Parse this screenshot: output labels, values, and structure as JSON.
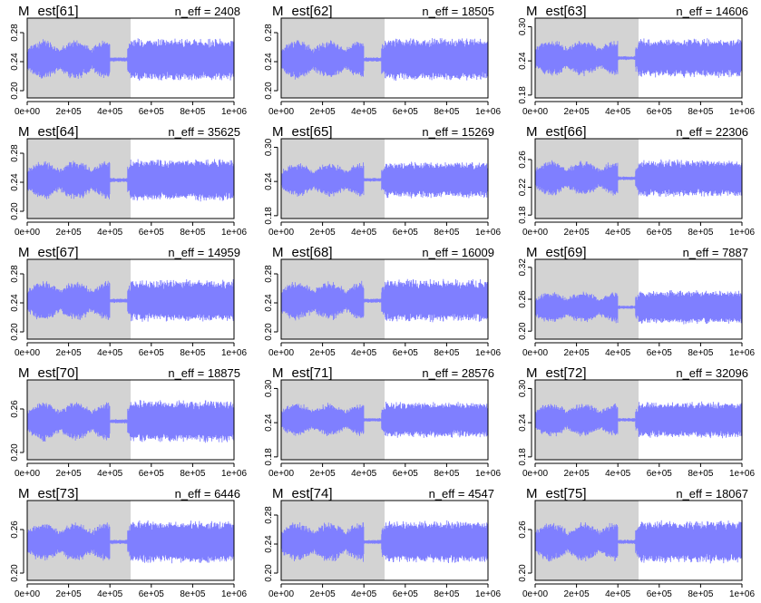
{
  "shade_color": "#d3d3d3",
  "trace_color": "#7f7fff",
  "chart_data": [
    {
      "type": "line",
      "title_param": "M_est[61]",
      "title_main": "M",
      "title_sub": "est[61]",
      "neff_label": "n_eff = 2408",
      "yticks": [
        "0.20",
        "0.24",
        "0.28"
      ],
      "ylim": [
        0.19,
        0.3
      ],
      "xticks": [
        "0e+00",
        "2e+05",
        "4e+05",
        "6e+05",
        "8e+05",
        "1e+06"
      ],
      "xlim": [
        0,
        1000000
      ],
      "warmup_end": 500000,
      "center": 0.243,
      "spread": 0.06
    },
    {
      "type": "line",
      "title_param": "M_est[62]",
      "title_main": "M",
      "title_sub": "est[62]",
      "neff_label": "n_eff = 18505",
      "yticks": [
        "0.20",
        "0.24",
        "0.28"
      ],
      "ylim": [
        0.19,
        0.3
      ],
      "xticks": [
        "0e+00",
        "2e+05",
        "4e+05",
        "6e+05",
        "8e+05",
        "1e+06"
      ],
      "xlim": [
        0,
        1000000
      ],
      "warmup_end": 500000,
      "center": 0.243,
      "spread": 0.06
    },
    {
      "type": "line",
      "title_param": "M_est[63]",
      "title_main": "M",
      "title_sub": "est[63]",
      "neff_label": "n_eff = 14606",
      "yticks": [
        "0.18",
        "0.24",
        "0.30"
      ],
      "ylim": [
        0.175,
        0.315
      ],
      "xticks": [
        "0e+00",
        "2e+05",
        "4e+05",
        "6e+05",
        "8e+05",
        "1e+06"
      ],
      "xlim": [
        0,
        1000000
      ],
      "warmup_end": 500000,
      "center": 0.245,
      "spread": 0.07
    },
    {
      "type": "line",
      "title_param": "M_est[64]",
      "title_main": "M",
      "title_sub": "est[64]",
      "neff_label": "n_eff = 35625",
      "yticks": [
        "0.20",
        "0.24",
        "0.28"
      ],
      "ylim": [
        0.19,
        0.3
      ],
      "xticks": [
        "0e+00",
        "2e+05",
        "4e+05",
        "6e+05",
        "8e+05",
        "1e+06"
      ],
      "xlim": [
        0,
        1000000
      ],
      "warmup_end": 500000,
      "center": 0.243,
      "spread": 0.06
    },
    {
      "type": "line",
      "title_param": "M_est[65]",
      "title_main": "M",
      "title_sub": "est[65]",
      "neff_label": "n_eff = 15269",
      "yticks": [
        "0.18",
        "0.24",
        "0.30"
      ],
      "ylim": [
        0.175,
        0.315
      ],
      "xticks": [
        "0e+00",
        "2e+05",
        "4e+05",
        "6e+05",
        "8e+05",
        "1e+06"
      ],
      "xlim": [
        0,
        1000000
      ],
      "warmup_end": 500000,
      "center": 0.243,
      "spread": 0.065
    },
    {
      "type": "line",
      "title_param": "M_est[66]",
      "title_main": "M",
      "title_sub": "est[66]",
      "neff_label": "n_eff = 22306",
      "yticks": [
        "0.18",
        "0.22",
        "0.26"
      ],
      "ylim": [
        0.175,
        0.29
      ],
      "xticks": [
        "0e+00",
        "2e+05",
        "4e+05",
        "6e+05",
        "8e+05",
        "1e+06"
      ],
      "xlim": [
        0,
        1000000
      ],
      "warmup_end": 500000,
      "center": 0.233,
      "spread": 0.055
    },
    {
      "type": "line",
      "title_param": "M_est[67]",
      "title_main": "M",
      "title_sub": "est[67]",
      "neff_label": "n_eff = 14959",
      "yticks": [
        "0.20",
        "0.24",
        "0.28"
      ],
      "ylim": [
        0.19,
        0.3
      ],
      "xticks": [
        "0e+00",
        "2e+05",
        "4e+05",
        "6e+05",
        "8e+05",
        "1e+06"
      ],
      "xlim": [
        0,
        1000000
      ],
      "warmup_end": 500000,
      "center": 0.243,
      "spread": 0.06
    },
    {
      "type": "line",
      "title_param": "M_est[68]",
      "title_main": "M",
      "title_sub": "est[68]",
      "neff_label": "n_eff = 16009",
      "yticks": [
        "0.20",
        "0.24",
        "0.28"
      ],
      "ylim": [
        0.19,
        0.3
      ],
      "xticks": [
        "0e+00",
        "2e+05",
        "4e+05",
        "6e+05",
        "8e+05",
        "1e+06"
      ],
      "xlim": [
        0,
        1000000
      ],
      "warmup_end": 500000,
      "center": 0.243,
      "spread": 0.06
    },
    {
      "type": "line",
      "title_param": "M_est[69]",
      "title_main": "M",
      "title_sub": "est[69]",
      "neff_label": "n_eff = 7887",
      "yticks": [
        "0.20",
        "0.26",
        "0.32"
      ],
      "ylim": [
        0.185,
        0.335
      ],
      "xticks": [
        "0e+00",
        "2e+05",
        "4e+05",
        "6e+05",
        "8e+05",
        "1e+06"
      ],
      "xlim": [
        0,
        1000000
      ],
      "warmup_end": 500000,
      "center": 0.245,
      "spread": 0.065
    },
    {
      "type": "line",
      "title_param": "M_est[70]",
      "title_main": "M",
      "title_sub": "est[70]",
      "neff_label": "n_eff = 18875",
      "yticks": [
        "0.20",
        "0.26"
      ],
      "ylim": [
        0.19,
        0.3
      ],
      "xticks": [
        "0e+00",
        "2e+05",
        "4e+05",
        "6e+05",
        "8e+05",
        "1e+06"
      ],
      "xlim": [
        0,
        1000000
      ],
      "warmup_end": 500000,
      "center": 0.243,
      "spread": 0.06
    },
    {
      "type": "line",
      "title_param": "M_est[71]",
      "title_main": "M",
      "title_sub": "est[71]",
      "neff_label": "n_eff = 28576",
      "yticks": [
        "0.18",
        "0.24",
        "0.30"
      ],
      "ylim": [
        0.175,
        0.315
      ],
      "xticks": [
        "0e+00",
        "2e+05",
        "4e+05",
        "6e+05",
        "8e+05",
        "1e+06"
      ],
      "xlim": [
        0,
        1000000
      ],
      "warmup_end": 500000,
      "center": 0.245,
      "spread": 0.065
    },
    {
      "type": "line",
      "title_param": "M_est[72]",
      "title_main": "M",
      "title_sub": "est[72]",
      "neff_label": "n_eff = 32096",
      "yticks": [
        "0.18",
        "0.24",
        "0.30"
      ],
      "ylim": [
        0.175,
        0.315
      ],
      "xticks": [
        "0e+00",
        "2e+05",
        "4e+05",
        "6e+05",
        "8e+05",
        "1e+06"
      ],
      "xlim": [
        0,
        1000000
      ],
      "warmup_end": 500000,
      "center": 0.245,
      "spread": 0.065
    },
    {
      "type": "line",
      "title_param": "M_est[73]",
      "title_main": "M",
      "title_sub": "est[73]",
      "neff_label": "n_eff = 6446",
      "yticks": [
        "0.20",
        "0.26"
      ],
      "ylim": [
        0.19,
        0.3
      ],
      "xticks": [
        "0e+00",
        "2e+05",
        "4e+05",
        "6e+05",
        "8e+05",
        "1e+06"
      ],
      "xlim": [
        0,
        1000000
      ],
      "warmup_end": 500000,
      "center": 0.243,
      "spread": 0.06
    },
    {
      "type": "line",
      "title_param": "M_est[74]",
      "title_main": "M",
      "title_sub": "est[74]",
      "neff_label": "n_eff = 4547",
      "yticks": [
        "0.20",
        "0.24",
        "0.28"
      ],
      "ylim": [
        0.19,
        0.3
      ],
      "xticks": [
        "0e+00",
        "2e+05",
        "4e+05",
        "6e+05",
        "8e+05",
        "1e+06"
      ],
      "xlim": [
        0,
        1000000
      ],
      "warmup_end": 500000,
      "center": 0.243,
      "spread": 0.06
    },
    {
      "type": "line",
      "title_param": "M_est[75]",
      "title_main": "M",
      "title_sub": "est[75]",
      "neff_label": "n_eff = 18067",
      "yticks": [
        "0.20",
        "0.26"
      ],
      "ylim": [
        0.19,
        0.3
      ],
      "xticks": [
        "0e+00",
        "2e+05",
        "4e+05",
        "6e+05",
        "8e+05",
        "1e+06"
      ],
      "xlim": [
        0,
        1000000
      ],
      "warmup_end": 500000,
      "center": 0.243,
      "spread": 0.06
    }
  ]
}
